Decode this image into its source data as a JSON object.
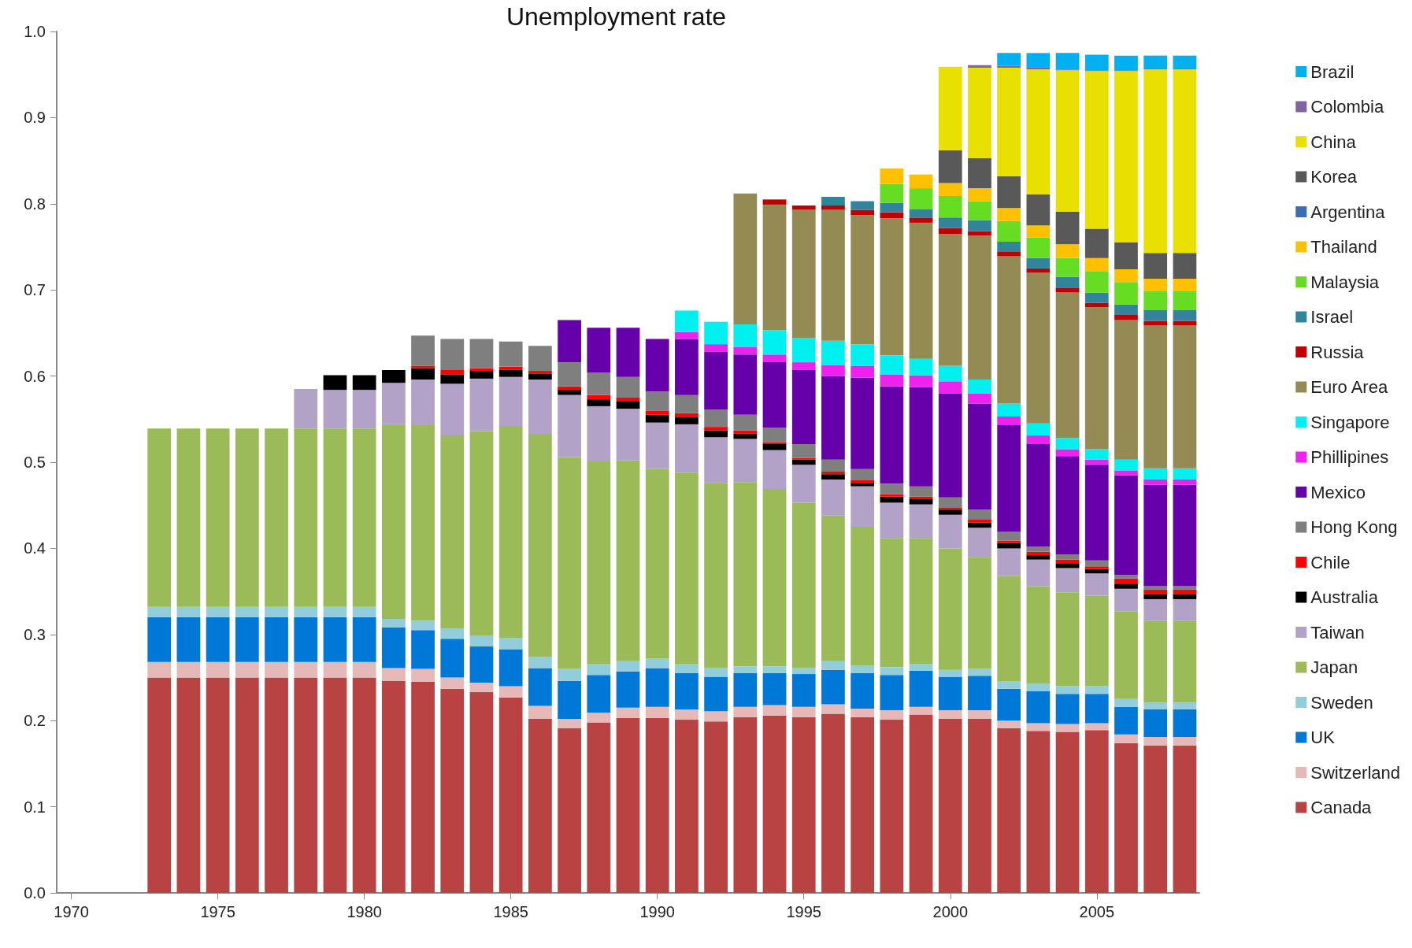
{
  "chart_data": {
    "type": "bar",
    "title": "Unemployment rate",
    "stacked": true,
    "legend": "right",
    "x": [
      1973,
      1974,
      1975,
      1976,
      1977,
      1978,
      1979,
      1980,
      1981,
      1982,
      1983,
      1984,
      1985,
      1986,
      1987,
      1988,
      1989,
      1990,
      1991,
      1992,
      1993,
      1994,
      1995,
      1996,
      1997,
      1998,
      1999,
      2000,
      2001,
      2002,
      2003,
      2004,
      2005,
      2006,
      2007,
      2008
    ],
    "xlim": [
      1969.5,
      2008.5
    ],
    "xticks": [
      1970,
      1975,
      1980,
      1985,
      1990,
      1995,
      2000,
      2005
    ],
    "ylim": [
      0,
      1
    ],
    "yticks": [
      {
        "value": 0,
        "label": "0.0"
      },
      0.1,
      0.2,
      0.3,
      0.4,
      0.5,
      0.6,
      0.7,
      0.8,
      0.9,
      {
        "value": 1,
        "label": "1.0"
      }
    ],
    "series": [
      {
        "name": "Canada",
        "color": "#b94343",
        "values": [
          0.25,
          0.25,
          0.25,
          0.25,
          0.25,
          0.25,
          0.25,
          0.25,
          0.246,
          0.245,
          0.237,
          0.233,
          0.227,
          0.202,
          0.191,
          0.198,
          0.203,
          0.203,
          0.201,
          0.199,
          0.204,
          0.206,
          0.204,
          0.208,
          0.204,
          0.201,
          0.207,
          0.202,
          0.202,
          0.191,
          0.188,
          0.187,
          0.189,
          0.174,
          0.171,
          0.171
        ]
      },
      {
        "name": "Switzerland",
        "color": "#e6b9b8",
        "values": [
          0.018,
          0.018,
          0.018,
          0.018,
          0.018,
          0.018,
          0.018,
          0.018,
          0.015,
          0.015,
          0.013,
          0.011,
          0.013,
          0.015,
          0.011,
          0.011,
          0.012,
          0.013,
          0.012,
          0.012,
          0.012,
          0.012,
          0.012,
          0.011,
          0.01,
          0.011,
          0.009,
          0.01,
          0.01,
          0.009,
          0.009,
          0.009,
          0.008,
          0.01,
          0.01,
          0.01
        ]
      },
      {
        "name": "UK",
        "color": "#0078d8",
        "values": [
          0.052,
          0.052,
          0.052,
          0.052,
          0.052,
          0.052,
          0.052,
          0.052,
          0.047,
          0.045,
          0.045,
          0.042,
          0.043,
          0.044,
          0.044,
          0.044,
          0.042,
          0.045,
          0.042,
          0.04,
          0.039,
          0.037,
          0.038,
          0.04,
          0.041,
          0.041,
          0.042,
          0.039,
          0.04,
          0.037,
          0.037,
          0.035,
          0.034,
          0.032,
          0.032,
          0.032
        ]
      },
      {
        "name": "Sweden",
        "color": "#92cddc",
        "values": [
          0.012,
          0.012,
          0.012,
          0.012,
          0.012,
          0.012,
          0.012,
          0.012,
          0.01,
          0.011,
          0.012,
          0.013,
          0.013,
          0.013,
          0.014,
          0.013,
          0.012,
          0.011,
          0.011,
          0.01,
          0.008,
          0.008,
          0.007,
          0.01,
          0.009,
          0.009,
          0.008,
          0.008,
          0.008,
          0.009,
          0.009,
          0.009,
          0.009,
          0.009,
          0.008,
          0.008
        ]
      },
      {
        "name": "Japan",
        "color": "#9bbb59",
        "values": [
          0.207,
          0.207,
          0.207,
          0.207,
          0.207,
          0.207,
          0.207,
          0.207,
          0.226,
          0.227,
          0.224,
          0.237,
          0.246,
          0.259,
          0.246,
          0.235,
          0.233,
          0.22,
          0.222,
          0.215,
          0.214,
          0.206,
          0.192,
          0.169,
          0.161,
          0.15,
          0.146,
          0.141,
          0.13,
          0.122,
          0.113,
          0.109,
          0.105,
          0.102,
          0.095,
          0.095
        ]
      },
      {
        "name": "Taiwan",
        "color": "#b2a2c7",
        "values": [
          null,
          null,
          null,
          null,
          null,
          0.046,
          0.045,
          0.045,
          0.048,
          0.053,
          0.06,
          0.061,
          0.057,
          0.063,
          0.072,
          0.064,
          0.06,
          0.054,
          0.056,
          0.053,
          0.05,
          0.045,
          0.044,
          0.042,
          0.047,
          0.041,
          0.039,
          0.039,
          0.034,
          0.032,
          0.031,
          0.028,
          0.026,
          0.026,
          0.025,
          0.025
        ]
      },
      {
        "name": "Australia",
        "color": "#000000",
        "values": [
          null,
          null,
          null,
          null,
          null,
          null,
          0.017,
          0.017,
          0.015,
          0.013,
          0.011,
          0.009,
          0.008,
          0.007,
          0.006,
          0.008,
          0.009,
          0.009,
          0.008,
          0.008,
          0.006,
          0.007,
          0.006,
          0.006,
          0.004,
          0.007,
          0.006,
          0.006,
          0.006,
          0.006,
          0.005,
          0.005,
          0.005,
          0.006,
          0.006,
          0.006
        ]
      },
      {
        "name": "Chile",
        "color": "#ff0000",
        "values": [
          null,
          null,
          null,
          null,
          null,
          null,
          null,
          null,
          null,
          0.003,
          0.005,
          0.003,
          0.004,
          0.003,
          0.004,
          0.005,
          0.004,
          0.005,
          0.005,
          0.004,
          0.004,
          0.002,
          0.002,
          0.003,
          0.003,
          0.003,
          0.003,
          0.002,
          0.004,
          0.003,
          0.004,
          0.005,
          0.003,
          0.006,
          0.005,
          0.005
        ]
      },
      {
        "name": "Hong Kong",
        "color": "#7f7f7f",
        "values": [
          null,
          null,
          null,
          null,
          null,
          null,
          null,
          null,
          null,
          0.035,
          0.036,
          0.034,
          0.029,
          0.029,
          0.028,
          0.026,
          0.024,
          0.022,
          0.021,
          0.02,
          0.018,
          0.017,
          0.016,
          0.014,
          0.013,
          0.012,
          0.012,
          0.012,
          0.011,
          0.01,
          0.006,
          0.006,
          0.007,
          0.004,
          0.004,
          0.004
        ]
      },
      {
        "name": "Mexico",
        "color": "#6600aa",
        "values": [
          null,
          null,
          null,
          null,
          null,
          null,
          null,
          null,
          null,
          null,
          null,
          null,
          null,
          null,
          0.049,
          0.052,
          0.057,
          0.061,
          0.065,
          0.067,
          0.07,
          0.076,
          0.086,
          0.097,
          0.106,
          0.113,
          0.115,
          0.121,
          0.123,
          0.124,
          0.119,
          0.114,
          0.111,
          0.116,
          0.118,
          0.118
        ]
      },
      {
        "name": "Phillipines",
        "color": "#ee22ee",
        "values": [
          null,
          null,
          null,
          null,
          null,
          null,
          null,
          null,
          null,
          null,
          null,
          null,
          null,
          null,
          null,
          null,
          null,
          null,
          0.008,
          0.009,
          0.009,
          0.009,
          0.009,
          0.013,
          0.014,
          0.014,
          0.014,
          0.014,
          0.012,
          0.01,
          0.01,
          0.008,
          0.006,
          0.005,
          0.006,
          0.006
        ]
      },
      {
        "name": "Singapore",
        "color": "#00f0f0",
        "values": [
          null,
          null,
          null,
          null,
          null,
          null,
          null,
          null,
          null,
          null,
          null,
          null,
          null,
          null,
          null,
          null,
          null,
          null,
          0.025,
          0.026,
          0.026,
          0.028,
          0.028,
          0.028,
          0.025,
          0.022,
          0.019,
          0.018,
          0.016,
          0.015,
          0.014,
          0.013,
          0.012,
          0.013,
          0.013,
          0.013
        ]
      },
      {
        "name": "Euro Area",
        "color": "#948a54",
        "values": [
          null,
          null,
          null,
          null,
          null,
          null,
          null,
          null,
          null,
          null,
          null,
          null,
          null,
          null,
          null,
          null,
          null,
          null,
          null,
          null,
          0.152,
          0.146,
          0.149,
          0.152,
          0.15,
          0.159,
          0.158,
          0.153,
          0.167,
          0.171,
          0.175,
          0.169,
          0.165,
          0.162,
          0.166,
          0.166
        ]
      },
      {
        "name": "Russia",
        "color": "#c00000",
        "values": [
          null,
          null,
          null,
          null,
          null,
          null,
          null,
          null,
          null,
          null,
          null,
          null,
          null,
          null,
          null,
          null,
          null,
          null,
          null,
          null,
          null,
          0.006,
          0.005,
          0.005,
          0.006,
          0.007,
          0.006,
          0.007,
          0.005,
          0.005,
          0.005,
          0.005,
          0.005,
          0.006,
          0.005,
          0.005
        ]
      },
      {
        "name": "Israel",
        "color": "#31849b",
        "values": [
          null,
          null,
          null,
          null,
          null,
          null,
          null,
          null,
          null,
          null,
          null,
          null,
          null,
          null,
          null,
          null,
          null,
          null,
          null,
          null,
          null,
          null,
          null,
          0.01,
          0.01,
          0.011,
          0.01,
          0.012,
          0.013,
          0.012,
          0.012,
          0.013,
          0.012,
          0.012,
          0.013,
          0.013
        ]
      },
      {
        "name": "Malaysia",
        "color": "#66dd22",
        "values": [
          null,
          null,
          null,
          null,
          null,
          null,
          null,
          null,
          null,
          null,
          null,
          null,
          null,
          null,
          null,
          null,
          null,
          null,
          null,
          null,
          null,
          null,
          null,
          null,
          null,
          0.022,
          0.024,
          0.025,
          0.022,
          0.024,
          0.024,
          0.022,
          0.025,
          0.026,
          0.022,
          0.022
        ]
      },
      {
        "name": "Thailand",
        "color": "#ffc000",
        "values": [
          null,
          null,
          null,
          null,
          null,
          null,
          null,
          null,
          null,
          null,
          null,
          null,
          null,
          null,
          null,
          null,
          null,
          null,
          null,
          null,
          null,
          null,
          null,
          null,
          null,
          0.018,
          0.016,
          0.015,
          0.015,
          0.015,
          0.014,
          0.016,
          0.015,
          0.015,
          0.014,
          0.014
        ]
      },
      {
        "name": "Argentina",
        "color": "#3d6db5",
        "values": [
          null,
          null,
          null,
          null,
          null,
          null,
          null,
          null,
          null,
          null,
          null,
          null,
          null,
          null,
          null,
          null,
          null,
          null,
          null,
          null,
          null,
          null,
          null,
          null,
          null,
          null,
          null,
          null,
          null,
          null,
          null,
          null,
          null,
          null,
          null,
          null
        ]
      },
      {
        "name": "Korea",
        "color": "#595959",
        "values": [
          null,
          null,
          null,
          null,
          null,
          null,
          null,
          null,
          null,
          null,
          null,
          null,
          null,
          null,
          null,
          null,
          null,
          null,
          null,
          null,
          null,
          null,
          null,
          null,
          null,
          null,
          null,
          0.038,
          0.035,
          0.037,
          0.036,
          0.038,
          0.034,
          0.031,
          0.03,
          0.03
        ]
      },
      {
        "name": "China",
        "color": "#e8e000",
        "values": [
          null,
          null,
          null,
          null,
          null,
          null,
          null,
          null,
          null,
          null,
          null,
          null,
          null,
          null,
          null,
          null,
          null,
          null,
          null,
          null,
          null,
          null,
          null,
          null,
          null,
          null,
          null,
          0.097,
          0.105,
          0.126,
          0.145,
          0.164,
          0.183,
          0.199,
          0.213,
          0.213
        ]
      },
      {
        "name": "Colombia",
        "color": "#8064a2",
        "values": [
          null,
          null,
          null,
          null,
          null,
          null,
          null,
          null,
          null,
          null,
          null,
          null,
          null,
          null,
          null,
          null,
          null,
          null,
          null,
          null,
          null,
          null,
          null,
          null,
          null,
          null,
          null,
          null,
          0.003,
          0.002,
          0.002,
          0.001,
          0.001,
          0.001,
          0.001,
          0.001
        ]
      },
      {
        "name": "Brazil",
        "color": "#00b0f0",
        "values": [
          null,
          null,
          null,
          null,
          null,
          null,
          null,
          null,
          null,
          null,
          null,
          null,
          null,
          null,
          null,
          null,
          null,
          null,
          null,
          null,
          null,
          null,
          null,
          null,
          null,
          null,
          null,
          null,
          null,
          0.015,
          0.017,
          0.019,
          0.018,
          0.017,
          0.015,
          0.015
        ]
      }
    ]
  }
}
